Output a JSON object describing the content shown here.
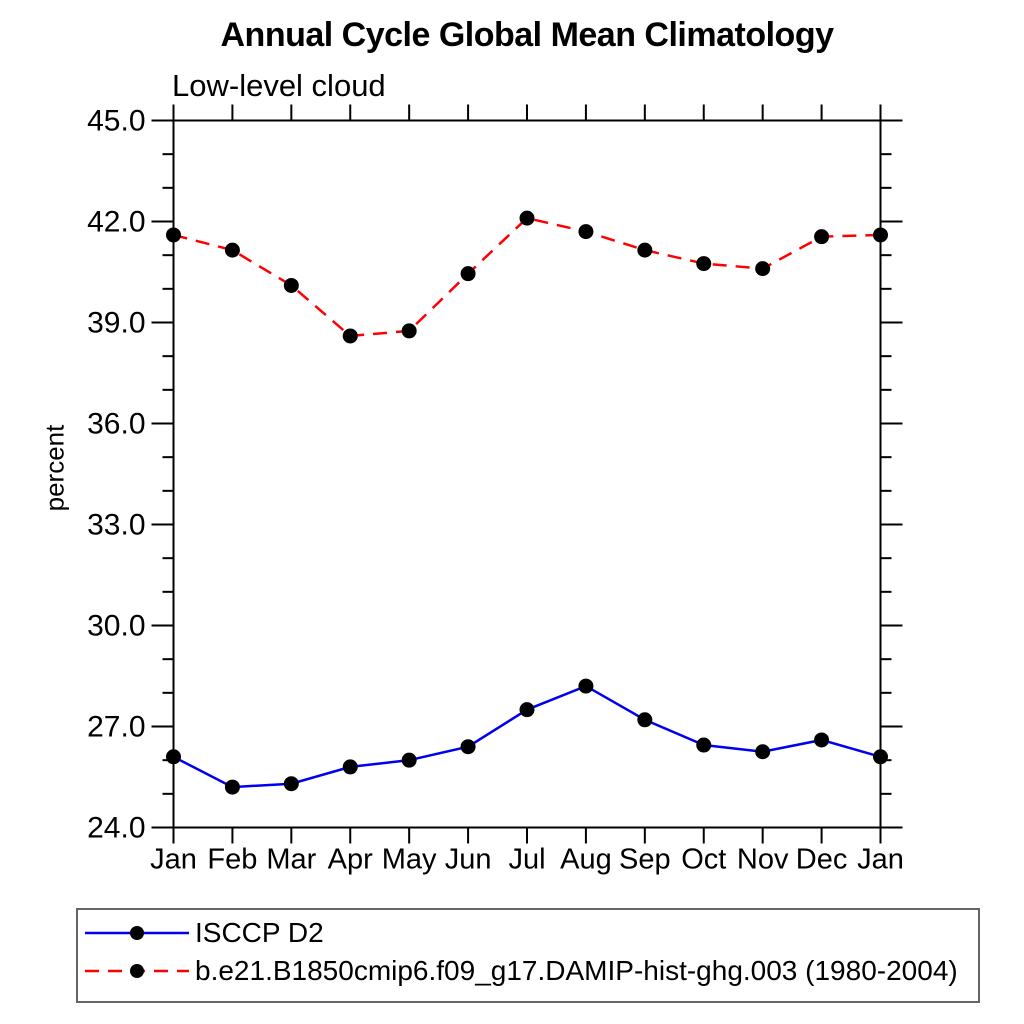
{
  "chart": {
    "title": "Annual Cycle Global Mean Climatology",
    "subtitle": "Low-level cloud",
    "y_axis_title": "percent"
  },
  "chart_data": {
    "type": "line",
    "title": "Annual Cycle Global Mean Climatology",
    "subtitle": "Low-level cloud",
    "xlabel": "",
    "ylabel": "percent",
    "categories": [
      "Jan",
      "Feb",
      "Mar",
      "Apr",
      "May",
      "Jun",
      "Jul",
      "Aug",
      "Sep",
      "Oct",
      "Nov",
      "Dec",
      "Jan"
    ],
    "ylim": [
      24.0,
      45.0
    ],
    "ytick_major_interval": 3.0,
    "ytick_minor_interval": 1.0,
    "ytick_labels": [
      "24.0",
      "27.0",
      "30.0",
      "33.0",
      "36.0",
      "39.0",
      "42.0",
      "45.0"
    ],
    "grid": false,
    "legend_position": "bottom",
    "axis_color": "#000000",
    "series": [
      {
        "name": "ISCCP D2",
        "color": "#0000ee",
        "style": "solid",
        "marker": "circle",
        "marker_color": "#000000",
        "values": [
          26.1,
          25.2,
          25.3,
          25.8,
          26.0,
          26.4,
          27.5,
          28.2,
          27.2,
          26.45,
          26.25,
          26.6,
          26.1
        ]
      },
      {
        "name": "b.e21.B1850cmip6.f09_g17.DAMIP-hist-ghg.003 (1980-2004)",
        "color": "#ff0000",
        "style": "dashed",
        "marker": "circle",
        "marker_color": "#000000",
        "values": [
          41.6,
          41.15,
          40.1,
          38.6,
          38.75,
          40.45,
          42.1,
          41.7,
          41.15,
          40.75,
          40.6,
          41.55,
          41.6
        ]
      }
    ]
  }
}
